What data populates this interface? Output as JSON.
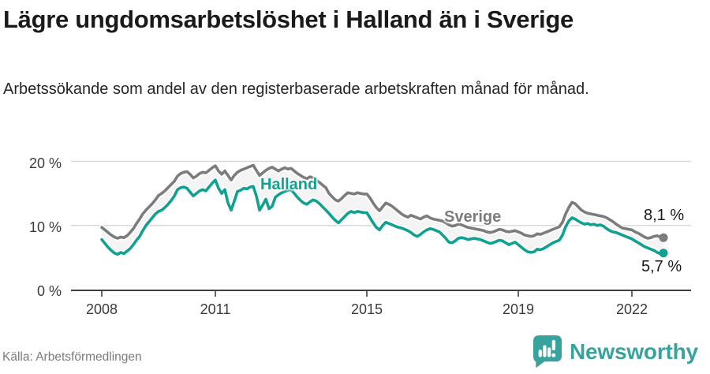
{
  "header": {
    "title": "Lägre ungdomsarbetslöshet i Halland än i Sverige",
    "subtitle": "Arbetssökande som andel av den registerbaserade arbetskraften månad för månad."
  },
  "footer": {
    "source": "Källa: Arbetsförmedlingen",
    "brand": "Newsworthy",
    "logo_icon": "speech-bubble-bar-chart-icon",
    "brand_color": "#38a39c"
  },
  "chart_data": {
    "type": "line",
    "unit": "%",
    "x_range": "monthly, 2008-01 to 2022-11",
    "grid": "horizontal gridlines at 10 and 20",
    "band_fill_between_series": true,
    "band_color": "#f4f4f4",
    "y_axis": {
      "min": 0,
      "max": 20,
      "tick_labels": [
        "0 %",
        "10 %",
        "20 %"
      ]
    },
    "x_ticks": [
      2008,
      2011,
      2015,
      2019,
      2022
    ],
    "series": [
      {
        "name": "Sverige",
        "color": "#7c7c7c",
        "end_label": "8,1 %",
        "end_value": 8.1,
        "values": [
          9.7,
          9.3,
          8.9,
          8.5,
          8.2,
          8.0,
          8.2,
          8.1,
          8.4,
          8.9,
          9.5,
          10.3,
          11.0,
          11.8,
          12.4,
          12.9,
          13.4,
          14.0,
          14.7,
          15.0,
          15.4,
          15.9,
          16.4,
          16.9,
          17.7,
          18.1,
          18.3,
          18.4,
          18.0,
          17.4,
          17.7,
          18.1,
          18.3,
          18.2,
          18.6,
          19.0,
          19.3,
          18.5,
          18.0,
          18.5,
          17.8,
          17.1,
          17.8,
          18.3,
          18.6,
          18.8,
          19.0,
          19.2,
          19.4,
          18.6,
          17.8,
          18.2,
          18.6,
          18.9,
          19.1,
          18.8,
          18.5,
          18.8,
          19.0,
          18.8,
          18.9,
          18.5,
          18.1,
          17.8,
          17.5,
          17.3,
          17.6,
          17.4,
          17.1,
          16.7,
          16.3,
          15.9,
          15.0,
          14.5,
          14.0,
          13.8,
          14.2,
          14.7,
          15.1,
          15.0,
          14.9,
          15.1,
          15.0,
          14.9,
          14.9,
          14.3,
          13.5,
          12.8,
          12.3,
          12.9,
          13.5,
          13.3,
          13.0,
          12.6,
          12.2,
          11.8,
          11.5,
          11.3,
          11.6,
          11.4,
          11.2,
          11.0,
          11.3,
          11.5,
          11.2,
          11.0,
          10.9,
          10.8,
          10.7,
          10.4,
          10.1,
          9.9,
          10.0,
          10.2,
          10.1,
          9.9,
          9.7,
          9.6,
          9.5,
          9.4,
          9.3,
          9.2,
          9.0,
          8.9,
          9.0,
          9.2,
          9.4,
          9.3,
          9.1,
          9.0,
          9.1,
          9.2,
          9.0,
          8.8,
          8.5,
          8.4,
          8.3,
          8.4,
          8.7,
          8.6,
          8.8,
          9.0,
          9.2,
          9.4,
          9.6,
          9.8,
          10.5,
          11.8,
          12.8,
          13.6,
          13.4,
          12.9,
          12.4,
          12.1,
          11.9,
          11.8,
          11.7,
          11.6,
          11.5,
          11.4,
          11.2,
          10.9,
          10.6,
          10.2,
          9.9,
          9.6,
          9.5,
          9.4,
          9.3,
          9.0,
          8.8,
          8.5,
          8.2,
          8.0,
          8.1,
          8.3,
          8.4,
          8.2,
          8.1
        ]
      },
      {
        "name": "Halland",
        "color": "#10a191",
        "end_label": "5,7 %",
        "end_value": 5.7,
        "values": [
          7.8,
          7.2,
          6.6,
          6.1,
          5.7,
          5.5,
          5.8,
          5.6,
          6.0,
          6.4,
          7.0,
          7.7,
          8.3,
          9.2,
          10.0,
          10.6,
          11.2,
          11.8,
          12.2,
          12.4,
          12.8,
          13.3,
          13.9,
          14.6,
          15.6,
          15.9,
          16.0,
          15.8,
          15.2,
          14.6,
          15.0,
          15.4,
          15.6,
          15.4,
          16.0,
          16.6,
          17.1,
          15.8,
          15.0,
          15.6,
          13.5,
          12.4,
          13.8,
          15.3,
          15.5,
          15.8,
          15.7,
          16.0,
          16.1,
          14.6,
          12.4,
          13.2,
          14.1,
          12.6,
          13.0,
          14.4,
          14.8,
          15.1,
          15.3,
          15.5,
          15.6,
          15.0,
          14.4,
          13.9,
          13.5,
          13.3,
          13.7,
          14.0,
          13.8,
          13.4,
          12.9,
          12.4,
          11.9,
          11.3,
          10.8,
          10.4,
          10.9,
          11.4,
          11.9,
          12.2,
          12.0,
          12.2,
          12.1,
          12.0,
          12.0,
          11.2,
          10.4,
          9.7,
          9.3,
          10.0,
          10.5,
          10.3,
          10.1,
          9.9,
          9.7,
          9.6,
          9.4,
          9.2,
          8.9,
          8.5,
          8.3,
          8.6,
          9.0,
          9.3,
          9.5,
          9.4,
          9.2,
          9.0,
          8.5,
          8.0,
          7.4,
          7.3,
          7.6,
          8.0,
          8.1,
          8.0,
          7.8,
          7.9,
          8.0,
          7.9,
          7.8,
          7.6,
          7.4,
          7.2,
          7.3,
          7.5,
          7.7,
          7.6,
          7.3,
          7.0,
          7.2,
          7.4,
          7.0,
          6.6,
          6.2,
          5.9,
          5.8,
          5.9,
          6.3,
          6.2,
          6.4,
          6.7,
          7.0,
          7.3,
          7.5,
          7.7,
          8.5,
          9.8,
          10.7,
          11.2,
          11.0,
          10.7,
          10.4,
          10.2,
          10.3,
          10.1,
          10.2,
          10.0,
          10.1,
          9.9,
          9.5,
          9.2,
          9.0,
          8.9,
          8.7,
          8.5,
          8.3,
          8.1,
          7.9,
          7.6,
          7.3,
          7.0,
          6.7,
          6.5,
          6.3,
          6.1,
          5.8,
          5.6,
          5.7
        ]
      }
    ]
  }
}
